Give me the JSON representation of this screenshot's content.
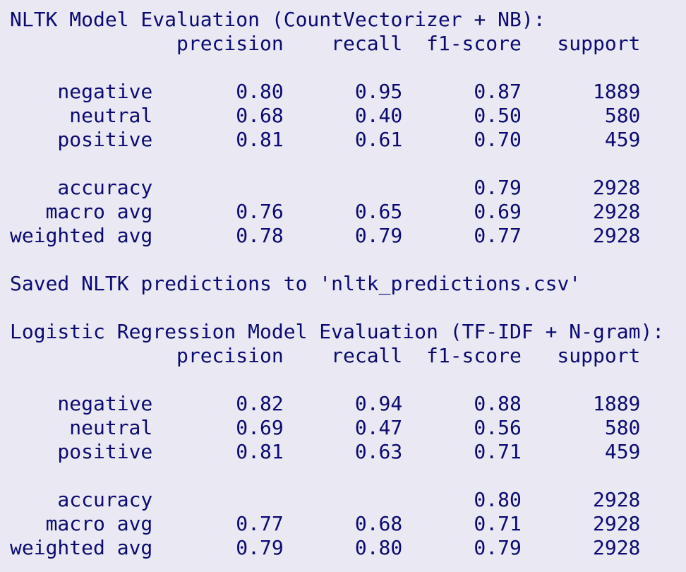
{
  "reports": [
    {
      "title": "NLTK Model Evaluation (CountVectorizer + NB):",
      "header": [
        "precision",
        "recall",
        "f1-score",
        "support"
      ],
      "rows": [
        {
          "label": "negative",
          "cells": [
            "0.80",
            "0.95",
            "0.87",
            "1889"
          ]
        },
        {
          "label": "neutral",
          "cells": [
            "0.68",
            "0.40",
            "0.50",
            "580"
          ]
        },
        {
          "label": "positive",
          "cells": [
            "0.81",
            "0.61",
            "0.70",
            "459"
          ]
        },
        {
          "label": "accuracy",
          "cells": [
            null,
            null,
            "0.79",
            "2928"
          ]
        },
        {
          "label": "macro avg",
          "cells": [
            "0.76",
            "0.65",
            "0.69",
            "2928"
          ]
        },
        {
          "label": "weighted avg",
          "cells": [
            "0.78",
            "0.79",
            "0.77",
            "2928"
          ]
        }
      ]
    },
    {
      "title": "Logistic Regression Model Evaluation (TF-IDF + N-gram):",
      "header": [
        "precision",
        "recall",
        "f1-score",
        "support"
      ],
      "rows": [
        {
          "label": "negative",
          "cells": [
            "0.82",
            "0.94",
            "0.88",
            "1889"
          ]
        },
        {
          "label": "neutral",
          "cells": [
            "0.69",
            "0.47",
            "0.56",
            "580"
          ]
        },
        {
          "label": "positive",
          "cells": [
            "0.81",
            "0.63",
            "0.71",
            "459"
          ]
        },
        {
          "label": "accuracy",
          "cells": [
            null,
            null,
            "0.80",
            "2928"
          ]
        },
        {
          "label": "macro avg",
          "cells": [
            "0.77",
            "0.68",
            "0.71",
            "2928"
          ]
        },
        {
          "label": "weighted avg",
          "cells": [
            "0.79",
            "0.80",
            "0.79",
            "2928"
          ]
        }
      ]
    }
  ],
  "message": "Saved NLTK predictions to 'nltk_predictions.csv'"
}
